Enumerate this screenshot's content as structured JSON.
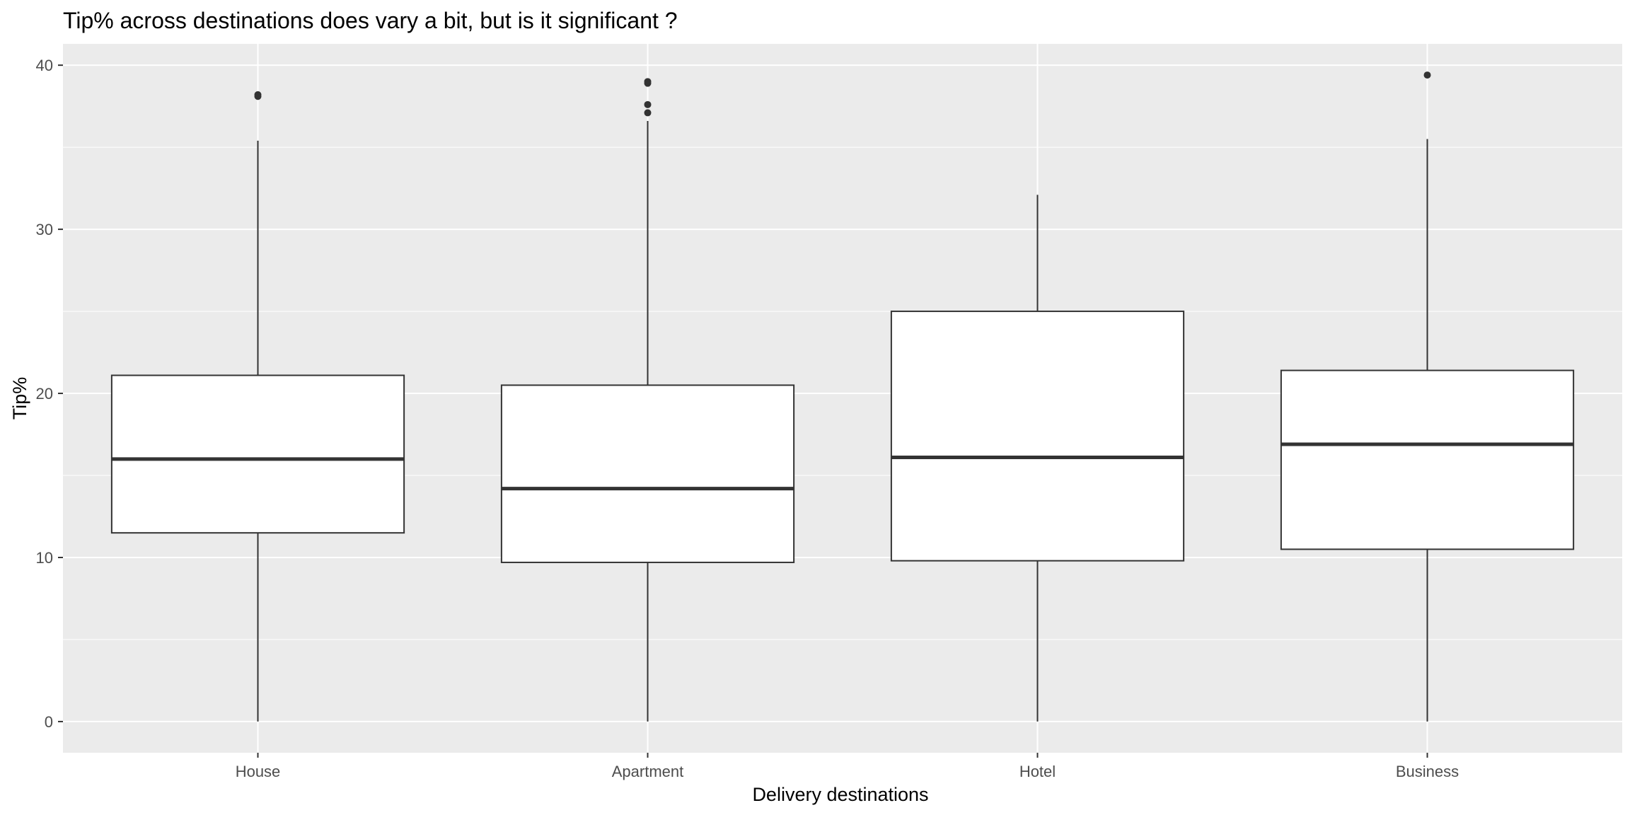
{
  "chart_data": {
    "type": "boxplot",
    "title": "Tip% across destinations does vary a bit, but is it significant ?",
    "xlabel": "Delivery destinations",
    "ylabel": "Tip%",
    "ylim": [
      -1.9,
      41.3
    ],
    "yticks": [
      0,
      10,
      20,
      30,
      40
    ],
    "ytick_labels": [
      "0",
      "10",
      "20",
      "30",
      "40"
    ],
    "grid": true,
    "panel_background": "#ebebeb",
    "grid_color": "#ffffff",
    "box_fill": "#ffffff",
    "box_stroke": "#333333",
    "categories": [
      "House",
      "Apartment",
      "Hotel",
      "Business"
    ],
    "boxes": [
      {
        "category": "House",
        "whisker_low": 0,
        "q1": 11.5,
        "median": 16.0,
        "q3": 21.1,
        "whisker_high": 35.4,
        "outliers": [
          38.1,
          38.2
        ]
      },
      {
        "category": "Apartment",
        "whisker_low": 0,
        "q1": 9.7,
        "median": 14.2,
        "q3": 20.5,
        "whisker_high": 36.6,
        "outliers": [
          37.1,
          37.6,
          38.9,
          39.0
        ]
      },
      {
        "category": "Hotel",
        "whisker_low": 0,
        "q1": 9.8,
        "median": 16.1,
        "q3": 25.0,
        "whisker_high": 32.1,
        "outliers": []
      },
      {
        "category": "Business",
        "whisker_low": 0,
        "q1": 10.5,
        "median": 16.9,
        "q3": 21.4,
        "whisker_high": 35.5,
        "outliers": [
          39.4
        ]
      }
    ]
  }
}
